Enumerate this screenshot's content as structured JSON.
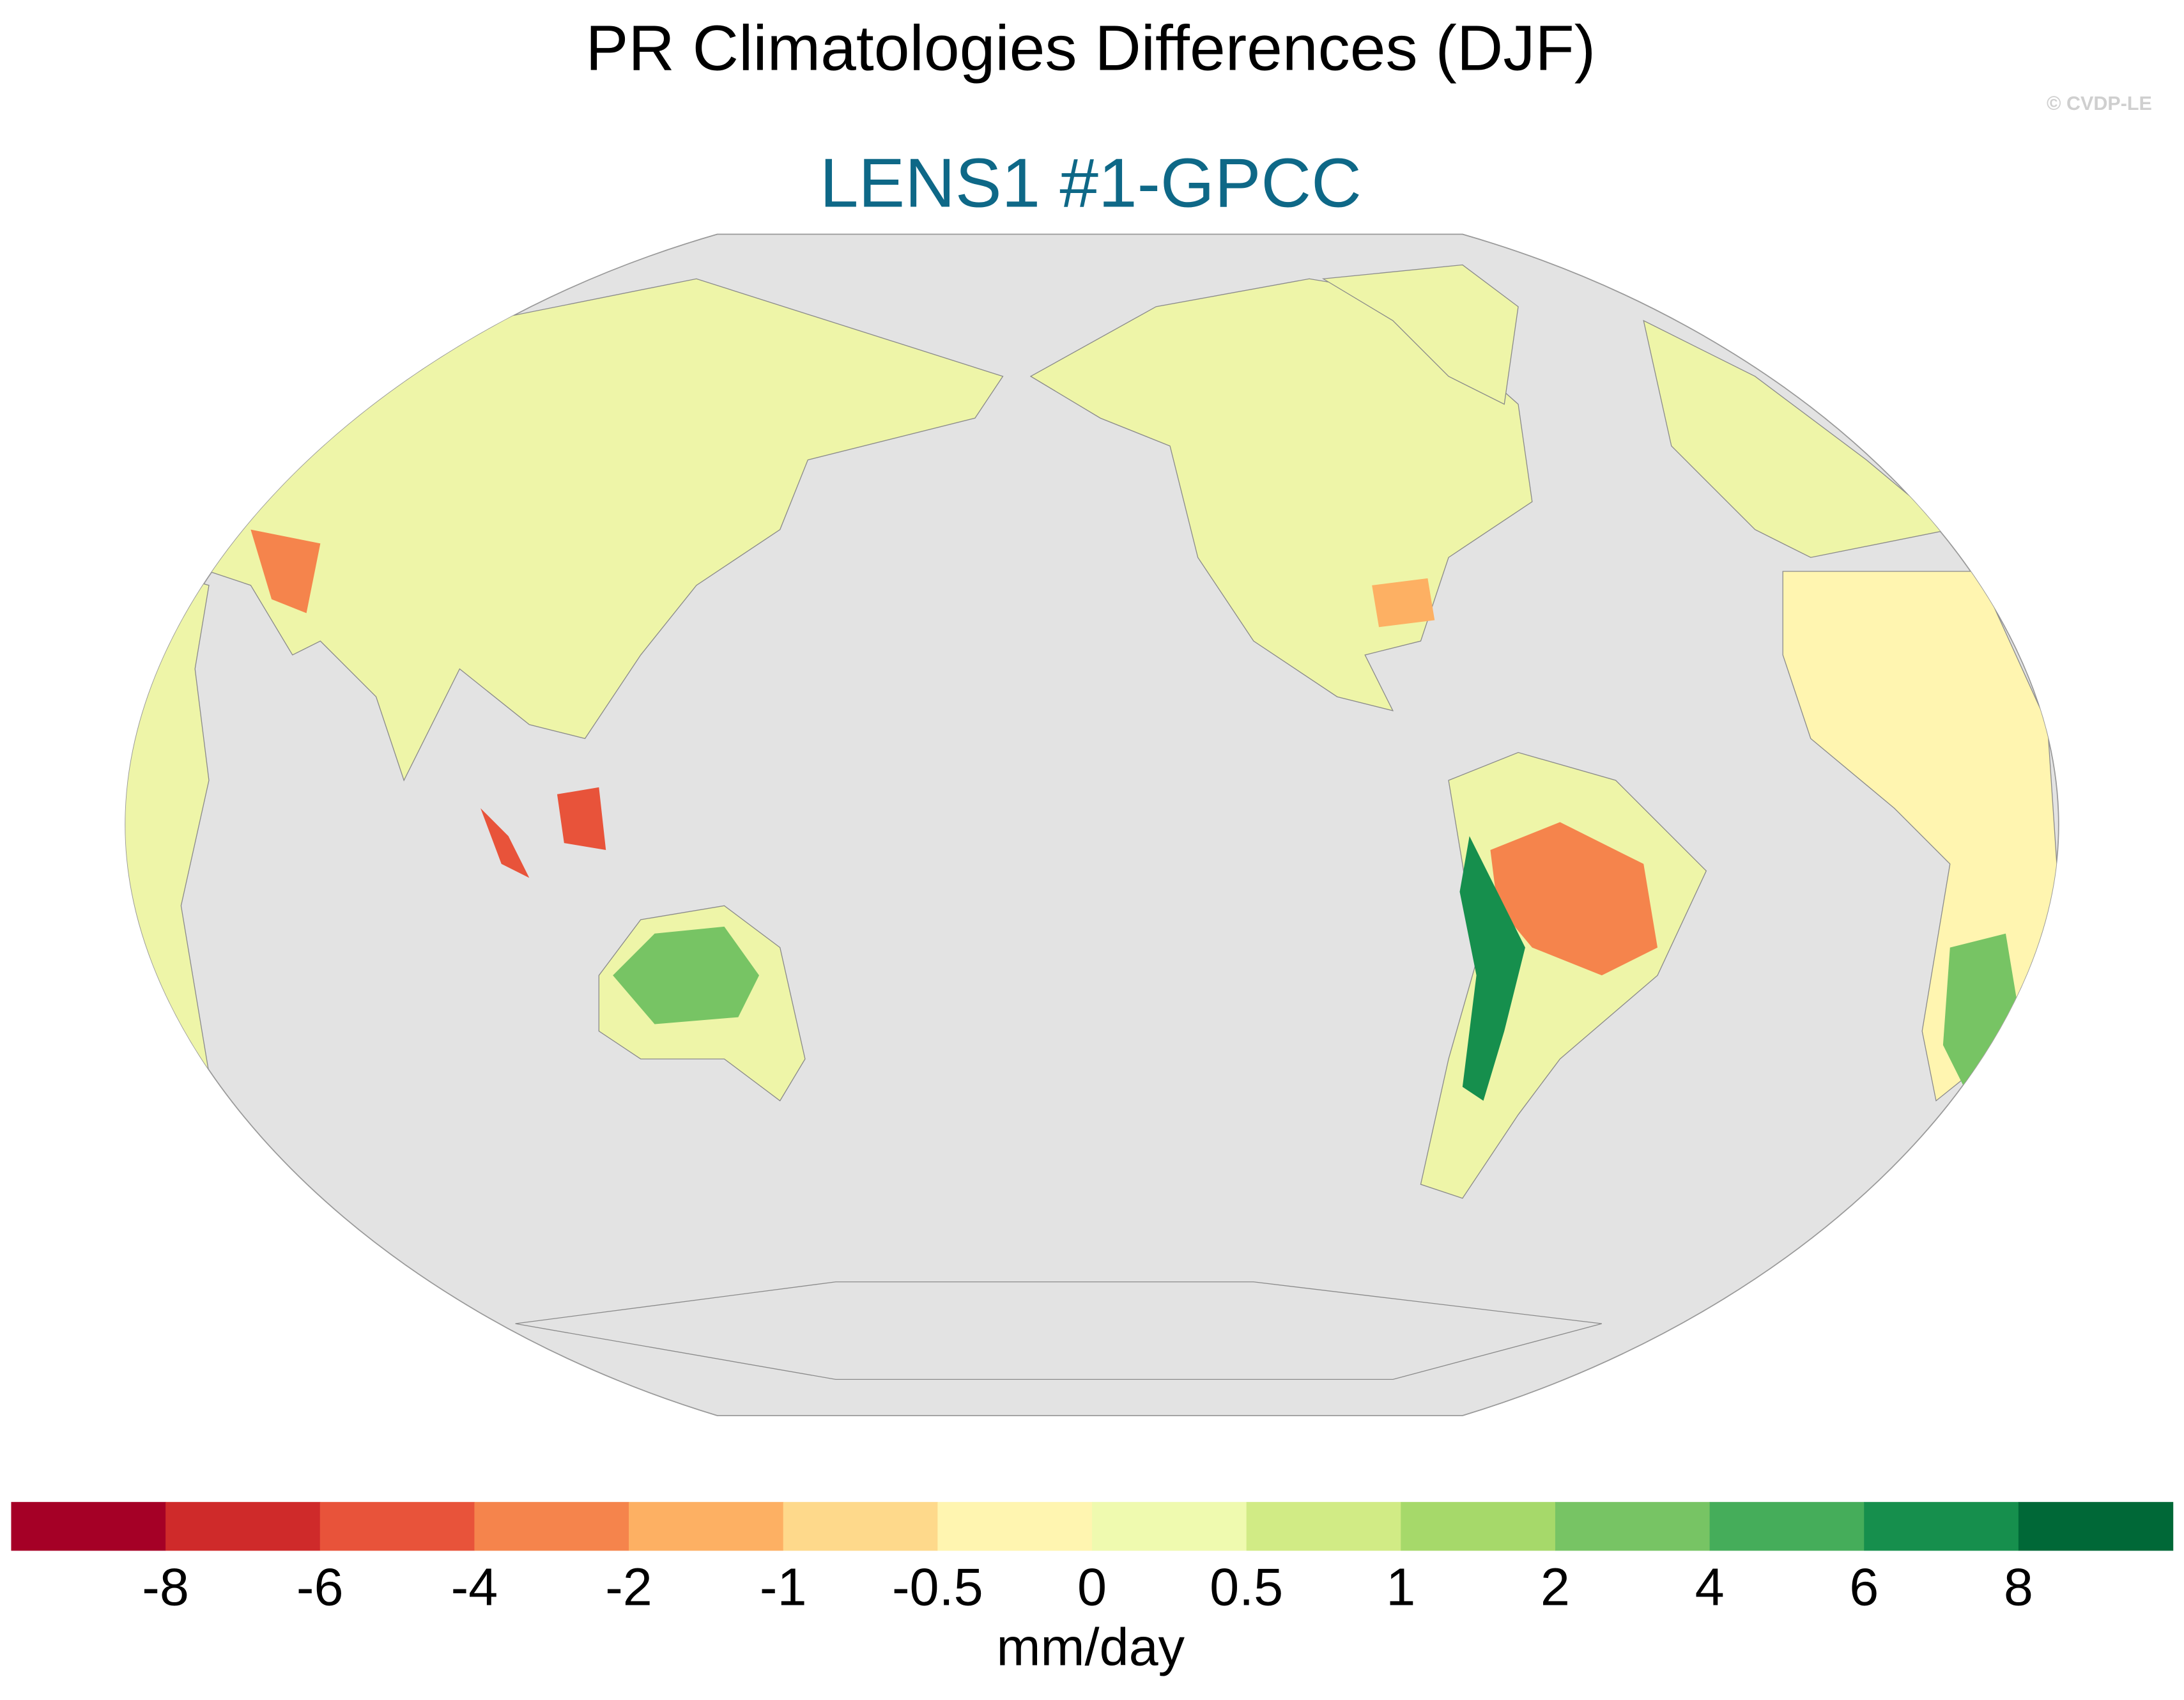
{
  "title": "PR Climatologies Differences (DJF)",
  "subtitle": "LENS1 #1-GPCC",
  "credit": "© CVDP-LE",
  "colorbar": {
    "label": "mm/day",
    "ticks": [
      -8,
      -6,
      -4,
      -2,
      -1,
      -0.5,
      0,
      0.5,
      1,
      2,
      4,
      6,
      8
    ],
    "colors": [
      "#a50026",
      "#cf2a2a",
      "#e8533a",
      "#f5844c",
      "#fdb063",
      "#fed98b",
      "#fff5b0",
      "#effaaf",
      "#d1eb85",
      "#a6d96a",
      "#77c464",
      "#45ad5a",
      "#168f4d",
      "#006837"
    ]
  }
}
